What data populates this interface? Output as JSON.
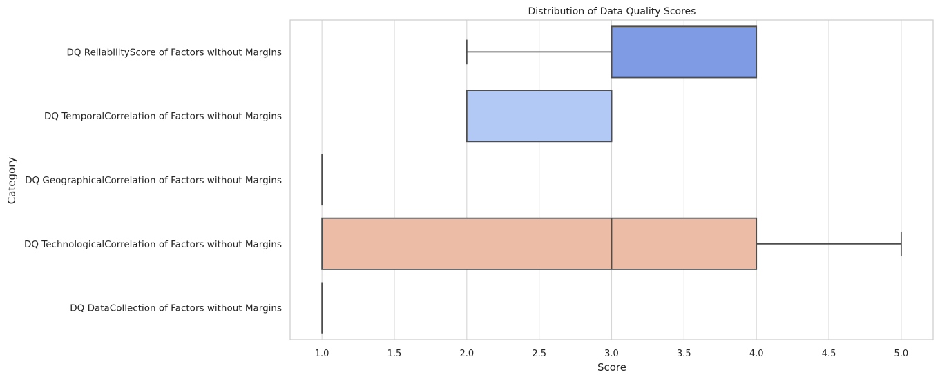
{
  "chart_data": {
    "type": "box",
    "orientation": "horizontal",
    "title": "Distribution of Data Quality Scores",
    "xlabel": "Score",
    "ylabel": "Category",
    "xlim": [
      0.78,
      5.22
    ],
    "xticks": [
      1.0,
      1.5,
      2.0,
      2.5,
      3.0,
      3.5,
      4.0,
      4.5,
      5.0
    ],
    "xtick_labels": [
      "1.0",
      "1.5",
      "2.0",
      "2.5",
      "3.0",
      "3.5",
      "4.0",
      "4.5",
      "5.0"
    ],
    "grid": true,
    "categories": [
      "DQ ReliabilityScore of Factors without Margins",
      "DQ TemporalCorrelation of Factors without Margins",
      "DQ GeographicalCorrelation of Factors without Margins",
      "DQ TechnologicalCorrelation of Factors without Margins",
      "DQ DataCollection of Factors without Margins"
    ],
    "boxes": [
      {
        "min": 2,
        "q1": 3,
        "median": 3,
        "q3": 4,
        "max": 4,
        "color": "#7f9be4"
      },
      {
        "min": 2,
        "q1": 2,
        "median": 3,
        "q3": 3,
        "max": 3,
        "color": "#b3c9f5"
      },
      {
        "min": 1,
        "q1": 1,
        "median": 1,
        "q3": 1,
        "max": 1,
        "color": "#dddcdb"
      },
      {
        "min": 1,
        "q1": 1,
        "median": 3,
        "q3": 4,
        "max": 5,
        "color": "#ecbca6"
      },
      {
        "min": 1,
        "q1": 1,
        "median": 1,
        "q3": 1,
        "max": 1,
        "color": "#f39a7e"
      }
    ]
  }
}
